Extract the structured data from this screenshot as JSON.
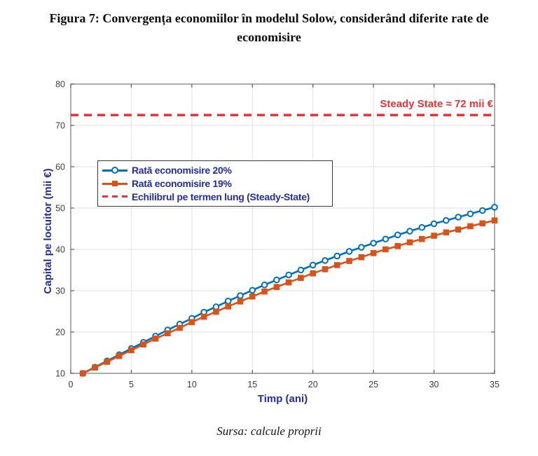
{
  "figure": {
    "title_line1": "Figura 7: Convergența economiilor în modelul Solow, considerând diferite rate de",
    "title_line2": "economisire",
    "source_note": "Sursa: calcule proprii"
  },
  "colors": {
    "series_blue": "#0072BD",
    "series_orange": "#D95319",
    "steady_red": "#ED3237",
    "axis_label": "#232D9B",
    "tick_label": "#3D3D3D",
    "grid": "#E2E2E2",
    "frame": "#808080",
    "tick": "#595959",
    "background": "#FFFFFF"
  },
  "chart_data": {
    "type": "line",
    "title": "",
    "xlabel": "Timp (ani)",
    "ylabel": "Capital pe locuitor (mii €)",
    "xlim": [
      0,
      35
    ],
    "ylim": [
      10,
      80
    ],
    "x_ticks": [
      0,
      5,
      10,
      15,
      20,
      25,
      30,
      35
    ],
    "y_ticks": [
      10,
      20,
      30,
      40,
      50,
      60,
      70,
      80
    ],
    "grid": true,
    "legend_position": "upper-left-inside",
    "x": [
      1,
      2,
      3,
      4,
      5,
      6,
      7,
      8,
      9,
      10,
      11,
      12,
      13,
      14,
      15,
      16,
      17,
      18,
      19,
      20,
      21,
      22,
      23,
      24,
      25,
      26,
      27,
      28,
      29,
      30,
      31,
      32,
      33,
      34,
      35
    ],
    "series": [
      {
        "name": "Rată economisire 20%",
        "color": "#0072BD",
        "marker": "circle",
        "values": [
          10.0,
          11.5,
          13.0,
          14.5,
          16.0,
          17.5,
          19.0,
          20.5,
          21.9,
          23.3,
          24.8,
          26.1,
          27.5,
          28.8,
          30.1,
          31.4,
          32.6,
          33.8,
          35.0,
          36.2,
          37.3,
          38.4,
          39.5,
          40.5,
          41.5,
          42.5,
          43.5,
          44.4,
          45.3,
          46.2,
          47.0,
          47.8,
          48.6,
          49.4,
          50.2
        ]
      },
      {
        "name": "Rată economisire 19%",
        "color": "#D95319",
        "marker": "square",
        "values": [
          10.0,
          11.4,
          12.8,
          14.2,
          15.6,
          17.0,
          18.4,
          19.7,
          21.0,
          22.4,
          23.7,
          24.9,
          26.2,
          27.4,
          28.6,
          29.8,
          30.9,
          32.0,
          33.1,
          34.2,
          35.2,
          36.2,
          37.2,
          38.1,
          39.1,
          40.0,
          40.8,
          41.7,
          42.5,
          43.3,
          44.1,
          44.8,
          45.6,
          46.3,
          47.0
        ]
      }
    ],
    "steady_state": {
      "value": 72.5,
      "annotation": "Steady State ≈ 72 mii €",
      "legend_label": "Echilibrul pe termen lung (Steady-State)",
      "color": "#ED3237",
      "line_style": "dashed"
    }
  }
}
